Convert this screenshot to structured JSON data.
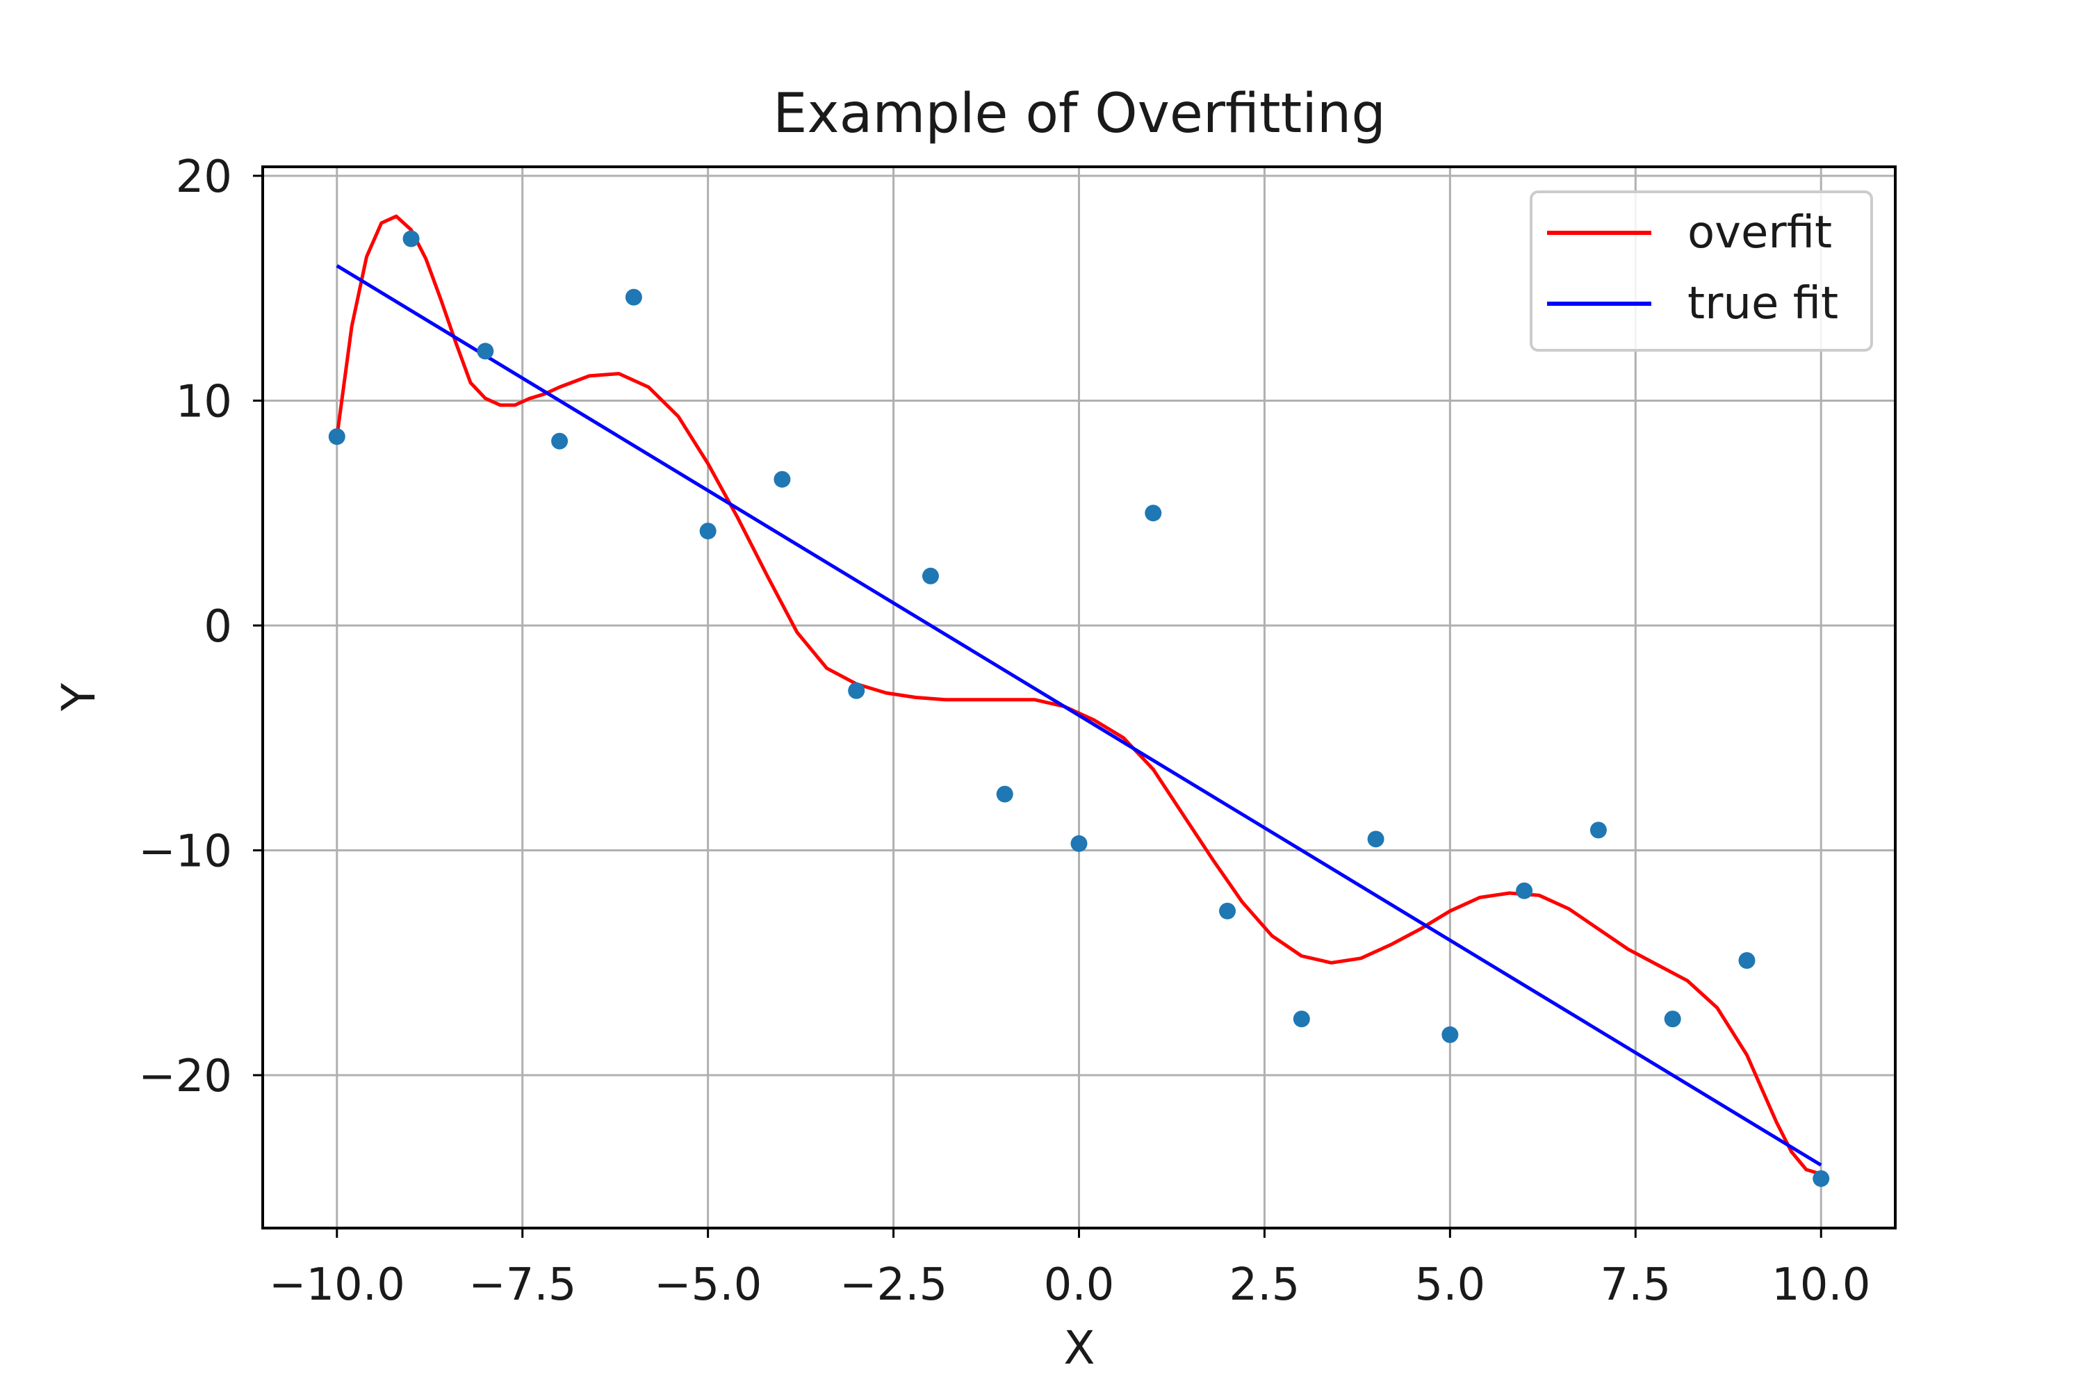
{
  "chart_data": {
    "type": "line",
    "title": "Example of Overfitting",
    "xlabel": "X",
    "ylabel": "Y",
    "xlim": [
      -11,
      11
    ],
    "ylim": [
      -26.8,
      20.4
    ],
    "grid": true,
    "legend_position": "upper right",
    "xticks": [
      -10.0,
      -7.5,
      -5.0,
      -2.5,
      0.0,
      2.5,
      5.0,
      7.5,
      10.0
    ],
    "xtick_labels": [
      "−10.0",
      "−7.5",
      "−5.0",
      "−2.5",
      "0.0",
      "2.5",
      "5.0",
      "7.5",
      "10.0"
    ],
    "yticks": [
      20,
      10,
      0,
      -10,
      -20
    ],
    "ytick_labels": [
      "20",
      "10",
      "0",
      "−10",
      "−20"
    ],
    "points": {
      "color": "#1f77b4",
      "x": [
        -10,
        -9,
        -8,
        -7,
        -6,
        -5,
        -4,
        -3,
        -2,
        -1,
        0,
        1,
        2,
        3,
        4,
        5,
        6,
        7,
        8,
        9,
        10
      ],
      "y": [
        8.4,
        17.2,
        12.2,
        8.2,
        14.6,
        4.2,
        6.5,
        -2.9,
        2.2,
        -7.5,
        -9.7,
        5.0,
        -12.7,
        -17.5,
        -9.5,
        -18.2,
        -11.8,
        -9.1,
        -17.5,
        -14.9,
        -24.6
      ]
    },
    "series": [
      {
        "name": "overfit",
        "color": "#ff0000",
        "x": [
          -10.0,
          -9.8,
          -9.6,
          -9.4,
          -9.2,
          -9.0,
          -8.8,
          -8.6,
          -8.4,
          -8.2,
          -8.0,
          -7.8,
          -7.6,
          -7.4,
          -7.2,
          -7.0,
          -6.6,
          -6.2,
          -5.8,
          -5.4,
          -5.0,
          -4.6,
          -4.2,
          -3.8,
          -3.4,
          -3.0,
          -2.6,
          -2.2,
          -1.8,
          -1.4,
          -1.0,
          -0.6,
          -0.2,
          0.2,
          0.6,
          1.0,
          1.4,
          1.8,
          2.2,
          2.6,
          3.0,
          3.4,
          3.8,
          4.2,
          4.6,
          5.0,
          5.4,
          5.8,
          6.2,
          6.6,
          7.0,
          7.4,
          7.8,
          8.2,
          8.6,
          9.0,
          9.2,
          9.4,
          9.6,
          9.8,
          10.0
        ],
        "y": [
          8.4,
          13.3,
          16.4,
          17.9,
          18.2,
          17.6,
          16.3,
          14.5,
          12.6,
          10.8,
          10.1,
          9.8,
          9.8,
          10.1,
          10.3,
          10.6,
          11.1,
          11.2,
          10.6,
          9.3,
          7.2,
          4.8,
          2.2,
          -0.3,
          -1.9,
          -2.6,
          -3.0,
          -3.2,
          -3.3,
          -3.3,
          -3.3,
          -3.3,
          -3.6,
          -4.2,
          -5.0,
          -6.4,
          -8.4,
          -10.4,
          -12.3,
          -13.8,
          -14.7,
          -15.0,
          -14.8,
          -14.2,
          -13.5,
          -12.7,
          -12.1,
          -11.9,
          -12.0,
          -12.6,
          -13.5,
          -14.4,
          -15.1,
          -15.8,
          -17.0,
          -19.1,
          -20.6,
          -22.1,
          -23.4,
          -24.2,
          -24.4
        ]
      },
      {
        "name": "true fit",
        "color": "#0000ff",
        "x": [
          -10,
          10
        ],
        "y": [
          16.0,
          -24.0
        ]
      }
    ]
  }
}
